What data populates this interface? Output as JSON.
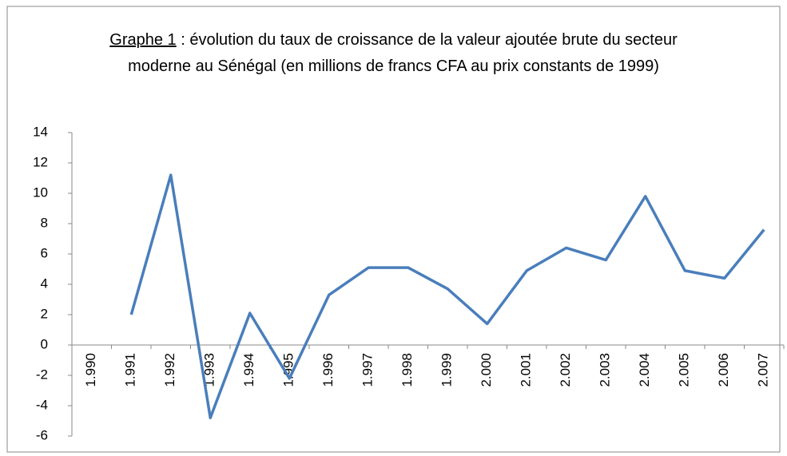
{
  "chart_data": {
    "type": "line",
    "title_label": "Graphe 1",
    "title": ": évolution du taux de croissance de la valeur ajoutée brute du secteur moderne au Sénégal (en millions de francs CFA au prix constants de 1999)",
    "categories": [
      "1.990",
      "1.991",
      "1.992",
      "1.993",
      "1.994",
      "1.995",
      "1.996",
      "1.997",
      "1.998",
      "1.999",
      "2.000",
      "2.001",
      "2.002",
      "2.003",
      "2.004",
      "2.005",
      "2.006",
      "2.007"
    ],
    "series": [
      {
        "name": null,
        "color": "#4a7ebb",
        "values": [
          null,
          2.0,
          11.2,
          -4.8,
          2.1,
          -2.2,
          3.3,
          5.1,
          5.1,
          3.7,
          1.4,
          4.9,
          6.4,
          5.6,
          9.8,
          4.9,
          4.4,
          7.6
        ]
      }
    ],
    "ylim": [
      -6,
      14
    ],
    "yticks": [
      -6,
      -4,
      -2,
      0,
      2,
      4,
      6,
      8,
      10,
      12,
      14
    ],
    "grid": false
  }
}
